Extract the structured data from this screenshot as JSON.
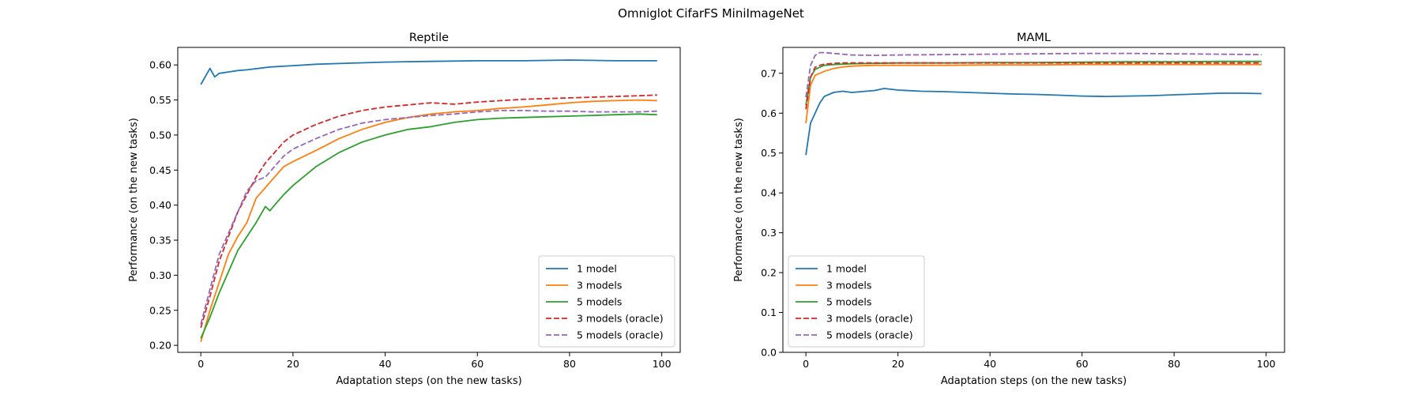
{
  "figure": {
    "suptitle": "Omniglot CifarFS MiniImageNet"
  },
  "chart_data": [
    {
      "type": "line",
      "title": "Reptile",
      "xlabel": "Adaptation steps (on the new tasks)",
      "ylabel": "Performance (on the new tasks)",
      "xlim": [
        -5,
        104
      ],
      "ylim": [
        0.19,
        0.625
      ],
      "xticks": [
        0,
        20,
        40,
        60,
        80,
        100
      ],
      "yticks": [
        0.2,
        0.25,
        0.3,
        0.35,
        0.4,
        0.45,
        0.5,
        0.55,
        0.6
      ],
      "ytick_decimals": 2,
      "legend_position": "lower-right",
      "grid": false,
      "series": [
        {
          "name": "1 model",
          "color": "#1f77b4",
          "dash": "solid",
          "x": [
            0,
            2,
            3,
            4,
            6,
            8,
            10,
            15,
            20,
            25,
            30,
            35,
            40,
            50,
            60,
            70,
            80,
            90,
            99
          ],
          "y": [
            0.572,
            0.595,
            0.583,
            0.588,
            0.59,
            0.592,
            0.593,
            0.597,
            0.599,
            0.601,
            0.602,
            0.603,
            0.604,
            0.605,
            0.606,
            0.606,
            0.607,
            0.606,
            0.606
          ]
        },
        {
          "name": "3 models",
          "color": "#ff7f0e",
          "dash": "solid",
          "x": [
            0,
            2,
            4,
            6,
            8,
            10,
            12,
            14,
            16,
            18,
            20,
            25,
            30,
            35,
            40,
            45,
            50,
            55,
            60,
            65,
            70,
            75,
            80,
            85,
            90,
            95,
            99
          ],
          "y": [
            0.205,
            0.25,
            0.29,
            0.33,
            0.355,
            0.375,
            0.41,
            0.425,
            0.44,
            0.455,
            0.462,
            0.478,
            0.495,
            0.508,
            0.518,
            0.525,
            0.53,
            0.533,
            0.535,
            0.538,
            0.54,
            0.543,
            0.546,
            0.548,
            0.549,
            0.55,
            0.549
          ]
        },
        {
          "name": "5 models",
          "color": "#2ca02c",
          "dash": "solid",
          "x": [
            0,
            2,
            4,
            6,
            8,
            10,
            12,
            14,
            15,
            16,
            18,
            20,
            25,
            30,
            35,
            40,
            45,
            50,
            55,
            60,
            65,
            70,
            75,
            80,
            85,
            90,
            95,
            99
          ],
          "y": [
            0.21,
            0.24,
            0.275,
            0.305,
            0.335,
            0.355,
            0.375,
            0.398,
            0.392,
            0.4,
            0.415,
            0.428,
            0.455,
            0.475,
            0.49,
            0.5,
            0.508,
            0.512,
            0.518,
            0.522,
            0.524,
            0.525,
            0.526,
            0.527,
            0.528,
            0.529,
            0.53,
            0.529
          ]
        },
        {
          "name": "3 models (oracle)",
          "color": "#d62728",
          "dash": "dashed",
          "x": [
            0,
            2,
            4,
            6,
            8,
            10,
            12,
            14,
            16,
            18,
            20,
            25,
            30,
            35,
            40,
            45,
            50,
            55,
            60,
            65,
            70,
            75,
            80,
            85,
            90,
            95,
            99
          ],
          "y": [
            0.225,
            0.27,
            0.32,
            0.355,
            0.39,
            0.415,
            0.44,
            0.46,
            0.475,
            0.49,
            0.5,
            0.515,
            0.527,
            0.535,
            0.54,
            0.543,
            0.546,
            0.544,
            0.547,
            0.549,
            0.551,
            0.552,
            0.553,
            0.554,
            0.555,
            0.556,
            0.557
          ]
        },
        {
          "name": "5 models (oracle)",
          "color": "#9467bd",
          "dash": "dashed",
          "x": [
            0,
            2,
            4,
            6,
            8,
            10,
            12,
            14,
            16,
            18,
            20,
            25,
            30,
            35,
            40,
            45,
            50,
            55,
            60,
            65,
            70,
            75,
            80,
            85,
            90,
            95,
            99
          ],
          "y": [
            0.23,
            0.28,
            0.33,
            0.36,
            0.39,
            0.42,
            0.435,
            0.44,
            0.455,
            0.47,
            0.48,
            0.495,
            0.508,
            0.517,
            0.522,
            0.525,
            0.528,
            0.53,
            0.533,
            0.535,
            0.535,
            0.534,
            0.534,
            0.533,
            0.533,
            0.533,
            0.534
          ]
        }
      ]
    },
    {
      "type": "line",
      "title": "MAML",
      "xlabel": "Adaptation steps (on the new tasks)",
      "ylabel": "Performance (on the new tasks)",
      "xlim": [
        -5,
        104
      ],
      "ylim": [
        0.0,
        0.765
      ],
      "xticks": [
        0,
        20,
        40,
        60,
        80,
        100
      ],
      "yticks": [
        0.0,
        0.1,
        0.2,
        0.3,
        0.4,
        0.5,
        0.6,
        0.7
      ],
      "ytick_decimals": 1,
      "legend_position": "lower-left",
      "grid": false,
      "series": [
        {
          "name": "1 model",
          "color": "#1f77b4",
          "dash": "solid",
          "x": [
            0,
            1,
            2,
            3,
            4,
            6,
            8,
            10,
            12,
            15,
            17,
            20,
            25,
            30,
            35,
            40,
            45,
            50,
            55,
            60,
            65,
            70,
            75,
            80,
            85,
            90,
            95,
            99
          ],
          "y": [
            0.495,
            0.575,
            0.6,
            0.625,
            0.642,
            0.652,
            0.655,
            0.652,
            0.654,
            0.657,
            0.662,
            0.658,
            0.655,
            0.654,
            0.652,
            0.65,
            0.648,
            0.647,
            0.645,
            0.643,
            0.642,
            0.643,
            0.644,
            0.646,
            0.648,
            0.65,
            0.65,
            0.649
          ]
        },
        {
          "name": "3 models",
          "color": "#ff7f0e",
          "dash": "solid",
          "x": [
            0,
            1,
            2,
            3,
            4,
            6,
            8,
            10,
            15,
            20,
            30,
            40,
            50,
            60,
            70,
            80,
            90,
            99
          ],
          "y": [
            0.575,
            0.67,
            0.695,
            0.7,
            0.705,
            0.712,
            0.716,
            0.718,
            0.72,
            0.72,
            0.72,
            0.721,
            0.721,
            0.722,
            0.722,
            0.722,
            0.722,
            0.722
          ]
        },
        {
          "name": "5 models",
          "color": "#2ca02c",
          "dash": "solid",
          "x": [
            0,
            1,
            2,
            3,
            4,
            6,
            8,
            10,
            15,
            20,
            30,
            40,
            50,
            60,
            70,
            80,
            90,
            99
          ],
          "y": [
            0.62,
            0.69,
            0.71,
            0.715,
            0.72,
            0.722,
            0.723,
            0.724,
            0.725,
            0.726,
            0.726,
            0.727,
            0.727,
            0.728,
            0.729,
            0.729,
            0.73,
            0.73
          ]
        },
        {
          "name": "3 models (oracle)",
          "color": "#d62728",
          "dash": "dashed",
          "x": [
            0,
            1,
            2,
            3,
            4,
            6,
            8,
            10,
            15,
            20,
            30,
            40,
            50,
            60,
            70,
            80,
            90,
            99
          ],
          "y": [
            0.61,
            0.69,
            0.715,
            0.72,
            0.723,
            0.725,
            0.726,
            0.726,
            0.726,
            0.726,
            0.726,
            0.726,
            0.726,
            0.726,
            0.726,
            0.726,
            0.726,
            0.726
          ]
        },
        {
          "name": "5 models (oracle)",
          "color": "#9467bd",
          "dash": "dashed",
          "x": [
            0,
            1,
            2,
            3,
            4,
            6,
            8,
            10,
            15,
            20,
            30,
            40,
            50,
            60,
            70,
            80,
            90,
            99
          ],
          "y": [
            0.64,
            0.72,
            0.745,
            0.752,
            0.752,
            0.75,
            0.748,
            0.746,
            0.745,
            0.746,
            0.747,
            0.748,
            0.749,
            0.75,
            0.75,
            0.749,
            0.748,
            0.747
          ]
        }
      ]
    }
  ]
}
